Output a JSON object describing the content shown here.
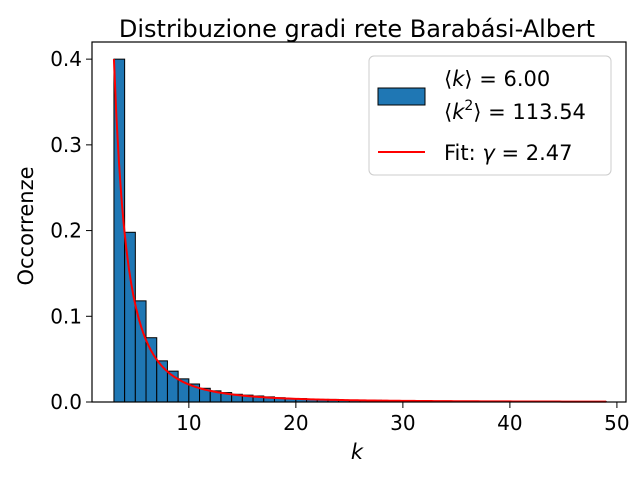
{
  "chart_data": {
    "type": "bar",
    "title": "Distribuzione gradi rete Barabási-Albert",
    "xlabel": "k",
    "ylabel": "Occorrenze",
    "xlim": [
      0.95,
      50.85
    ],
    "ylim": [
      0,
      0.42
    ],
    "xticks": [
      10,
      20,
      30,
      40,
      50
    ],
    "xtick_labels": [
      "10",
      "20",
      "30",
      "40",
      "50"
    ],
    "yticks": [
      0.0,
      0.1,
      0.2,
      0.3,
      0.4
    ],
    "ytick_labels": [
      "0.0",
      "0.1",
      "0.2",
      "0.3",
      "0.4"
    ],
    "grid": false,
    "legend_position": "top-right",
    "series": [
      {
        "name": "⟨k⟩ = 6.00 / ⟨k²⟩ = 113.54",
        "kind": "histogram",
        "color": "#1f77b4",
        "edgecolor": "#000000",
        "bin_width": 1,
        "bin_starts": [
          3,
          4,
          5,
          6,
          7,
          8,
          9,
          10,
          11,
          12,
          13,
          14,
          15,
          16,
          17,
          18,
          19,
          20,
          21,
          22,
          23,
          24,
          25,
          26,
          27,
          28,
          29,
          30,
          31,
          32,
          33,
          34,
          35,
          36,
          37,
          38,
          39,
          40,
          41,
          42,
          43,
          44,
          45,
          46,
          47,
          48
        ],
        "values": [
          0.4,
          0.198,
          0.118,
          0.075,
          0.048,
          0.036,
          0.027,
          0.021,
          0.016,
          0.013,
          0.011,
          0.009,
          0.008,
          0.007,
          0.006,
          0.005,
          0.004,
          0.004,
          0.003,
          0.003,
          0.003,
          0.002,
          0.002,
          0.002,
          0.002,
          0.001,
          0.001,
          0.001,
          0.001,
          0.001,
          0.001,
          0.001,
          0.001,
          0.001,
          0.001,
          0.001,
          0.001,
          0.001,
          0.001,
          0.0005,
          0.0005,
          0.0005,
          0.0005,
          0.0005,
          0.0005,
          0.0005
        ]
      },
      {
        "name": "Fit: γ = 2.47",
        "kind": "line",
        "color": "#ff0000",
        "function": "power_law",
        "gamma": 2.47,
        "x_range": [
          3,
          49
        ],
        "anchor": [
          3,
          0.4
        ]
      }
    ],
    "legend": {
      "hist_label_line1_pre": "⟨",
      "hist_label_line1_var": "k",
      "hist_label_line1_post": "⟩ = 6.00",
      "hist_label_line2_pre": "⟨",
      "hist_label_line2_var": "k",
      "hist_label_line2_sup": "2",
      "hist_label_line2_post": "⟩ = 113.54",
      "fit_label_pre": "Fit: ",
      "fit_label_var": "γ",
      "fit_label_post": " = 2.47"
    }
  }
}
